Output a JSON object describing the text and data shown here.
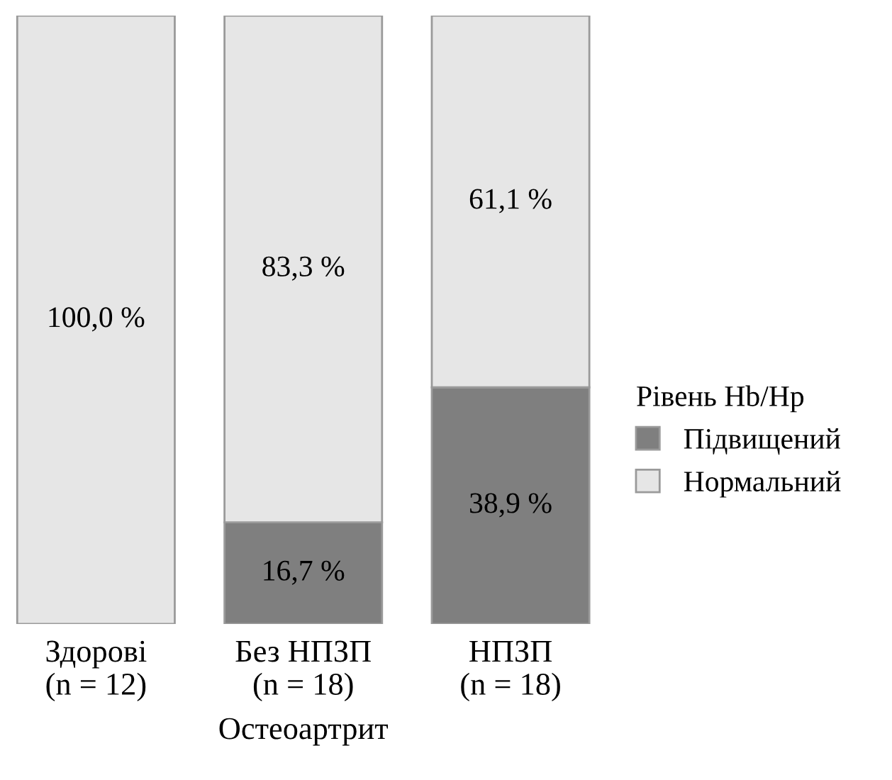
{
  "chart_data": {
    "type": "bar",
    "stacked": true,
    "categories": [
      "Здорові\n(n = 12)",
      "Без НПЗП\n(n = 18)",
      "НПЗП\n(n = 18)"
    ],
    "xlabel": "Остеоартрит",
    "legend_title": "Рівень Hb/Hp",
    "legend": "right",
    "ylim": [
      0,
      100
    ],
    "series": [
      {
        "name": "Підвищений",
        "color": "#7f7f7f",
        "values": [
          0,
          16.7,
          38.9
        ],
        "value_labels": [
          null,
          "16,7 %",
          "38,9 %"
        ]
      },
      {
        "name": "Нормальний",
        "color": "#e6e6e6",
        "values": [
          100,
          83.3,
          61.1
        ],
        "value_labels": [
          "100,0 %",
          "83,3 %",
          "61,1 %"
        ]
      }
    ]
  }
}
